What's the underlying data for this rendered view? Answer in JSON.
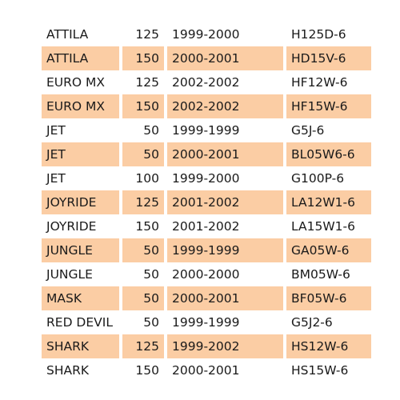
{
  "table": {
    "rows": [
      {
        "model": "ATTILA",
        "cc": "125",
        "years": "1999-2000",
        "code": "H125D-6",
        "highlight": false
      },
      {
        "model": "ATTILA",
        "cc": "150",
        "years": "2000-2001",
        "code": "HD15V-6",
        "highlight": true
      },
      {
        "model": "EURO MX",
        "cc": "125",
        "years": "2002-2002",
        "code": "HF12W-6",
        "highlight": false
      },
      {
        "model": "EURO MX",
        "cc": "150",
        "years": "2002-2002",
        "code": "HF15W-6",
        "highlight": true
      },
      {
        "model": "JET",
        "cc": "50",
        "years": "1999-1999",
        "code": "G5J-6",
        "highlight": false
      },
      {
        "model": "JET",
        "cc": "50",
        "years": "2000-2001",
        "code": "BL05W6-6",
        "highlight": true
      },
      {
        "model": "JET",
        "cc": "100",
        "years": "1999-2000",
        "code": "G100P-6",
        "highlight": false
      },
      {
        "model": "JOYRIDE",
        "cc": "125",
        "years": "2001-2002",
        "code": "LA12W1-6",
        "highlight": true
      },
      {
        "model": "JOYRIDE",
        "cc": "150",
        "years": "2001-2002",
        "code": "LA15W1-6",
        "highlight": false
      },
      {
        "model": "JUNGLE",
        "cc": "50",
        "years": "1999-1999",
        "code": "GA05W-6",
        "highlight": true
      },
      {
        "model": "JUNGLE",
        "cc": "50",
        "years": "2000-2000",
        "code": "BM05W-6",
        "highlight": false
      },
      {
        "model": "MASK",
        "cc": "50",
        "years": "2000-2001",
        "code": "BF05W-6",
        "highlight": true
      },
      {
        "model": "RED DEVIL",
        "cc": "50",
        "years": "1999-1999",
        "code": "G5J2-6",
        "highlight": false
      },
      {
        "model": "SHARK",
        "cc": "125",
        "years": "1999-2002",
        "code": "HS12W-6",
        "highlight": true
      },
      {
        "model": "SHARK",
        "cc": "150",
        "years": "2000-2001",
        "code": "HS15W-6",
        "highlight": false
      }
    ]
  },
  "colors": {
    "highlight_row": "#fbcda4",
    "plain_row": "#ffffff",
    "text": "#1a1a1a"
  }
}
